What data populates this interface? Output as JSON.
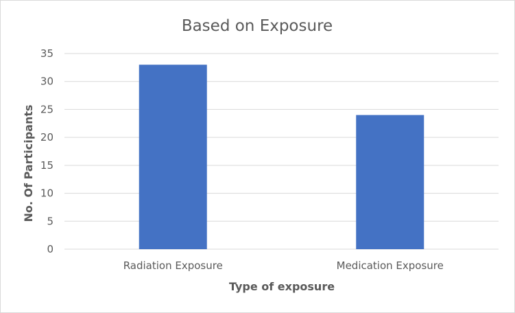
{
  "chart_data": {
    "type": "bar",
    "title": "Based on Exposure",
    "xlabel": "Type of exposure",
    "ylabel": "No. Of Participants",
    "categories": [
      "Radiation Exposure",
      "Medication Exposure"
    ],
    "values": [
      33,
      24
    ],
    "ylim": [
      0,
      35
    ],
    "yticks": [
      0,
      5,
      10,
      15,
      20,
      25,
      30,
      35
    ],
    "grid": true,
    "legend": "none",
    "colors": {
      "bar": "#4472c4",
      "grid": "#d9d9d9",
      "text": "#595959"
    }
  }
}
